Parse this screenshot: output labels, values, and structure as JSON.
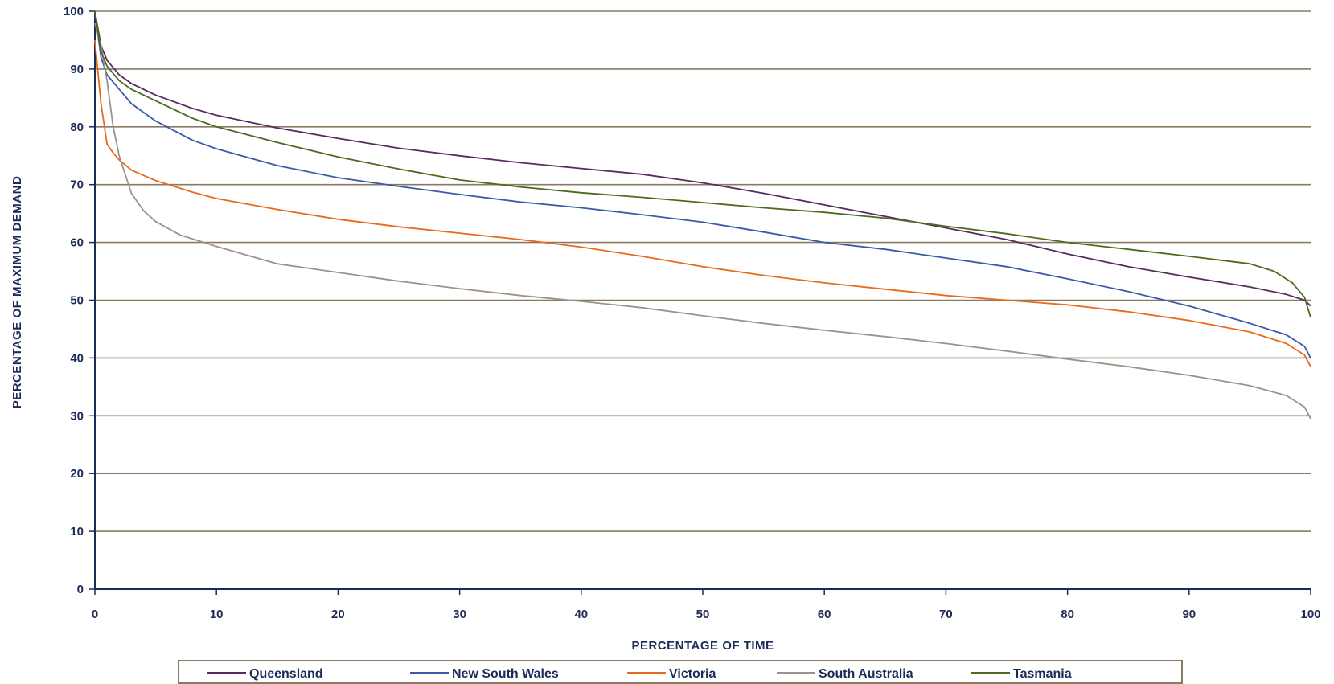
{
  "chart_data": {
    "type": "line",
    "xlabel": "PERCENTAGE OF TIME",
    "ylabel": "PERCENTAGE OF MAXIMUM DEMAND",
    "xlim": [
      0,
      100
    ],
    "ylim": [
      0,
      100
    ],
    "xticks": [
      "0",
      "10",
      "20",
      "30",
      "40",
      "50",
      "60",
      "70",
      "80",
      "90",
      "100"
    ],
    "yticks": [
      "0",
      "10",
      "20",
      "30",
      "40",
      "50",
      "60",
      "70",
      "80",
      "90",
      "100"
    ],
    "grid": "horizontal",
    "legend_position": "bottom",
    "series": [
      {
        "name": "Queensland",
        "color": "#5a2a5e",
        "points": [
          [
            0,
            100
          ],
          [
            0.5,
            94
          ],
          [
            1,
            91.5
          ],
          [
            2,
            89
          ],
          [
            3,
            87.5
          ],
          [
            5,
            85.5
          ],
          [
            8,
            83.2
          ],
          [
            10,
            82
          ],
          [
            15,
            79.8
          ],
          [
            20,
            78
          ],
          [
            25,
            76.3
          ],
          [
            30,
            75
          ],
          [
            35,
            73.8
          ],
          [
            40,
            72.8
          ],
          [
            45,
            71.8
          ],
          [
            50,
            70.3
          ],
          [
            55,
            68.5
          ],
          [
            60,
            66.5
          ],
          [
            65,
            64.5
          ],
          [
            70,
            62.5
          ],
          [
            75,
            60.5
          ],
          [
            80,
            58
          ],
          [
            85,
            55.8
          ],
          [
            90,
            54
          ],
          [
            95,
            52.3
          ],
          [
            98,
            51
          ],
          [
            99.5,
            50
          ],
          [
            100,
            49
          ]
        ]
      },
      {
        "name": "New South Wales",
        "color": "#3a5aa8",
        "points": [
          [
            0,
            100
          ],
          [
            0.5,
            92
          ],
          [
            1,
            89
          ],
          [
            2,
            86.5
          ],
          [
            3,
            84
          ],
          [
            5,
            81
          ],
          [
            8,
            77.7
          ],
          [
            10,
            76.2
          ],
          [
            15,
            73.3
          ],
          [
            20,
            71.2
          ],
          [
            25,
            69.7
          ],
          [
            30,
            68.3
          ],
          [
            35,
            67
          ],
          [
            40,
            66
          ],
          [
            45,
            64.8
          ],
          [
            50,
            63.5
          ],
          [
            55,
            61.8
          ],
          [
            60,
            60
          ],
          [
            65,
            58.8
          ],
          [
            70,
            57.3
          ],
          [
            75,
            55.8
          ],
          [
            80,
            53.7
          ],
          [
            85,
            51.5
          ],
          [
            90,
            49
          ],
          [
            95,
            46
          ],
          [
            98,
            44
          ],
          [
            99.5,
            42
          ],
          [
            100,
            40
          ]
        ]
      },
      {
        "name": "Victoria",
        "color": "#e86a1c",
        "points": [
          [
            0,
            95
          ],
          [
            0.5,
            84
          ],
          [
            1,
            77
          ],
          [
            1.5,
            75.5
          ],
          [
            2,
            74.3
          ],
          [
            3,
            72.5
          ],
          [
            5,
            70.7
          ],
          [
            8,
            68.7
          ],
          [
            10,
            67.6
          ],
          [
            15,
            65.7
          ],
          [
            20,
            64
          ],
          [
            25,
            62.7
          ],
          [
            30,
            61.6
          ],
          [
            35,
            60.5
          ],
          [
            40,
            59.2
          ],
          [
            45,
            57.6
          ],
          [
            50,
            55.8
          ],
          [
            55,
            54.3
          ],
          [
            60,
            53
          ],
          [
            65,
            51.9
          ],
          [
            70,
            50.8
          ],
          [
            75,
            50
          ],
          [
            80,
            49.2
          ],
          [
            85,
            48
          ],
          [
            90,
            46.5
          ],
          [
            95,
            44.5
          ],
          [
            98,
            42.5
          ],
          [
            99.5,
            40.5
          ],
          [
            100,
            38.5
          ]
        ]
      },
      {
        "name": "South Australia",
        "color": "#9a938c",
        "points": [
          [
            0,
            98
          ],
          [
            0.5,
            94
          ],
          [
            1,
            88
          ],
          [
            1.5,
            80
          ],
          [
            2,
            75
          ],
          [
            3,
            68.5
          ],
          [
            4,
            65.5
          ],
          [
            5,
            63.6
          ],
          [
            7,
            61.3
          ],
          [
            10,
            59.3
          ],
          [
            15,
            56.3
          ],
          [
            20,
            54.8
          ],
          [
            25,
            53.3
          ],
          [
            30,
            52
          ],
          [
            35,
            50.8
          ],
          [
            40,
            49.8
          ],
          [
            45,
            48.7
          ],
          [
            50,
            47.3
          ],
          [
            55,
            46
          ],
          [
            60,
            44.8
          ],
          [
            65,
            43.7
          ],
          [
            70,
            42.5
          ],
          [
            75,
            41.2
          ],
          [
            80,
            39.8
          ],
          [
            85,
            38.5
          ],
          [
            90,
            37
          ],
          [
            95,
            35.2
          ],
          [
            98,
            33.5
          ],
          [
            99.5,
            31.5
          ],
          [
            100,
            29.5
          ]
        ]
      },
      {
        "name": "Tasmania",
        "color": "#4d6b1e",
        "points": [
          [
            0,
            100
          ],
          [
            0.5,
            93
          ],
          [
            1,
            90.5
          ],
          [
            2,
            88
          ],
          [
            3,
            86.5
          ],
          [
            5,
            84.5
          ],
          [
            8,
            81.5
          ],
          [
            10,
            80
          ],
          [
            15,
            77.3
          ],
          [
            20,
            74.8
          ],
          [
            25,
            72.7
          ],
          [
            30,
            70.8
          ],
          [
            35,
            69.6
          ],
          [
            40,
            68.6
          ],
          [
            45,
            67.8
          ],
          [
            50,
            66.9
          ],
          [
            55,
            66
          ],
          [
            60,
            65.2
          ],
          [
            65,
            64.2
          ],
          [
            70,
            62.8
          ],
          [
            75,
            61.5
          ],
          [
            80,
            60
          ],
          [
            85,
            58.8
          ],
          [
            90,
            57.6
          ],
          [
            95,
            56.3
          ],
          [
            97,
            55
          ],
          [
            98.5,
            53
          ],
          [
            99.5,
            50.5
          ],
          [
            100,
            47
          ]
        ]
      }
    ]
  }
}
